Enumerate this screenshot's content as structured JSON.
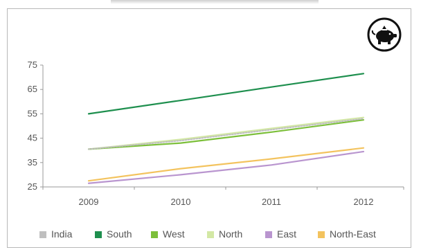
{
  "chart_data": {
    "type": "line",
    "x": [
      "2009",
      "2010",
      "2011",
      "2012"
    ],
    "ylim": [
      25,
      75
    ],
    "yticks": [
      25,
      35,
      45,
      55,
      65,
      75
    ],
    "grid": false,
    "legend_position": "bottom",
    "series": [
      {
        "name": "India",
        "color": "#bfbfbf",
        "values": [
          40.5,
          44,
          48.5,
          53
        ]
      },
      {
        "name": "South",
        "color": "#1e8f4e",
        "values": [
          55,
          60.5,
          66,
          71.5
        ]
      },
      {
        "name": "West",
        "color": "#7cbf3a",
        "values": [
          40.5,
          43,
          47.5,
          52.5
        ]
      },
      {
        "name": "North",
        "color": "#d3e8a5",
        "values": [
          40.5,
          44.5,
          49,
          53.5
        ]
      },
      {
        "name": "East",
        "color": "#b995cf",
        "values": [
          26.5,
          30,
          34,
          39.5
        ]
      },
      {
        "name": "North-East",
        "color": "#f3c35e",
        "values": [
          27.5,
          32.5,
          36.5,
          41
        ]
      }
    ]
  },
  "icon": {
    "name": "piggy-bank-icon"
  }
}
